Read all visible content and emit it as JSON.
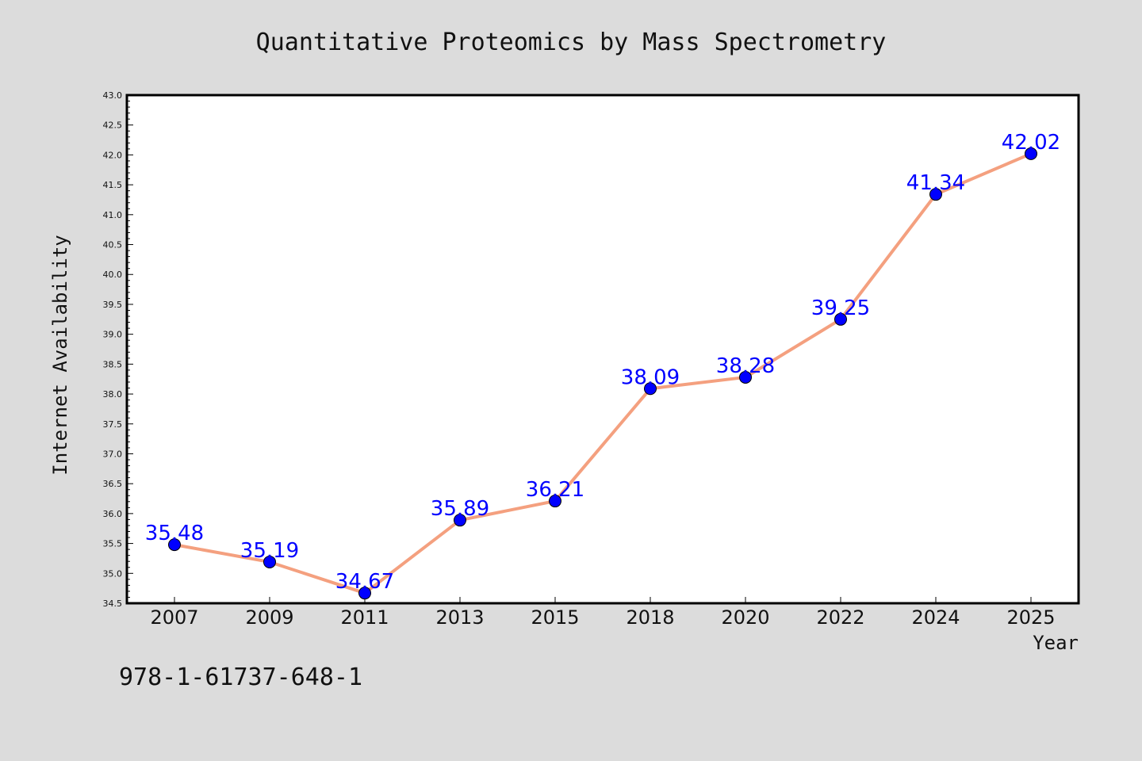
{
  "chart_data": {
    "type": "line",
    "title": "Quantitative Proteomics by Mass Spectrometry",
    "xlabel": "Year",
    "ylabel": "Internet Availability",
    "categories": [
      "2007",
      "2009",
      "2011",
      "2013",
      "2015",
      "2018",
      "2020",
      "2022",
      "2024",
      "2025"
    ],
    "values": [
      35.48,
      35.19,
      34.67,
      35.89,
      36.21,
      38.09,
      38.28,
      39.25,
      41.34,
      42.02
    ],
    "data_labels": [
      "35.48",
      "35.19",
      "34.67",
      "35.89",
      "36.21",
      "38.09",
      "38.28",
      "39.25",
      "41.34",
      "42.02"
    ],
    "ylim": [
      34.5,
      43.0
    ],
    "yticks": [
      "34.5",
      "35.0",
      "35.5",
      "36.0",
      "36.5",
      "37.0",
      "37.5",
      "38.0",
      "38.5",
      "39.0",
      "39.5",
      "40.0",
      "40.5",
      "41.0",
      "41.5",
      "42.0",
      "42.5",
      "43.0"
    ],
    "grid": false,
    "legend": "none",
    "line_color": "#f4a07f",
    "marker_color": "#0000ff",
    "label_color": "#0000ff"
  },
  "footer_note": "978-1-61737-648-1"
}
